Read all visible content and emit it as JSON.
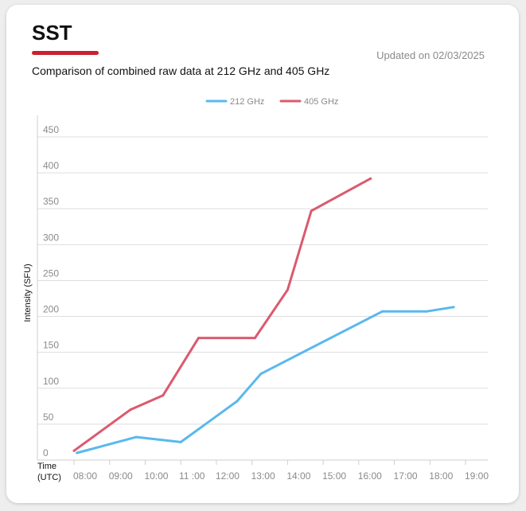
{
  "header": {
    "title": "SST",
    "updated": "Updated on 02/03/2025",
    "subtitle": "Comparison of combined raw data at 212 GHz and 405 GHz"
  },
  "colors": {
    "accent": "#cc1f2f",
    "series_212": "#5ab8ee",
    "series_405": "#db5a6e"
  },
  "chart_data": {
    "type": "line",
    "title": "Comparison of combined raw data at 212 GHz and 405 GHz",
    "xlabel": "Time (UTC)",
    "ylabel": "Intensity (SFU)",
    "x_tick_labels": [
      "08:00",
      "09:00",
      "10:00",
      "11 :00",
      "12:00",
      "13:00",
      "14:00",
      "15:00",
      "16:00",
      "17:00",
      "18:00",
      "19:00"
    ],
    "xlim": [
      "08:00",
      "19:00"
    ],
    "y_ticks": [
      0,
      50,
      100,
      150,
      200,
      250,
      300,
      350,
      400,
      450
    ],
    "ylim": [
      0,
      450
    ],
    "grid": true,
    "legend_position": "top-center",
    "series": [
      {
        "name": "212 GHz",
        "color": "#5ab8ee",
        "points": [
          {
            "x": "08:05",
            "y": 10
          },
          {
            "x": "09:45",
            "y": 32
          },
          {
            "x": "11:00",
            "y": 25
          },
          {
            "x": "12:35",
            "y": 82
          },
          {
            "x": "13:15",
            "y": 120
          },
          {
            "x": "16:40",
            "y": 207
          },
          {
            "x": "17:55",
            "y": 207
          },
          {
            "x": "18:40",
            "y": 213
          }
        ]
      },
      {
        "name": "405 GHz",
        "color": "#db5a6e",
        "points": [
          {
            "x": "08:00",
            "y": 13
          },
          {
            "x": "09:35",
            "y": 70
          },
          {
            "x": "10:30",
            "y": 90
          },
          {
            "x": "11:30",
            "y": 170
          },
          {
            "x": "13:05",
            "y": 170
          },
          {
            "x": "14:00",
            "y": 237
          },
          {
            "x": "14:40",
            "y": 347
          },
          {
            "x": "16:20",
            "y": 392
          }
        ]
      }
    ]
  }
}
